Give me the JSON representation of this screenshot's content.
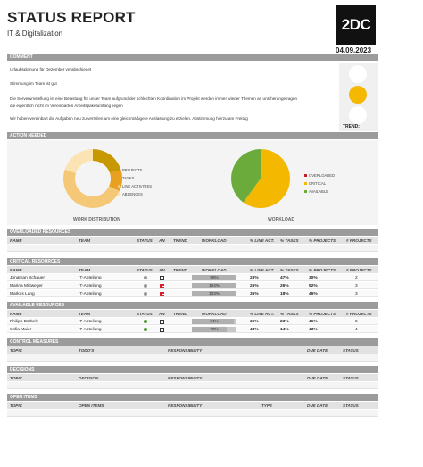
{
  "header": {
    "title": "STATUS REPORT",
    "subtitle": "IT & Digitalization",
    "logo": "2DC",
    "date": "04.09.2023"
  },
  "comment": {
    "heading": "COMMENT",
    "lines": [
      "Urlaubsplanung für Dezember verabschiedet",
      "Stimmung im Team ist gut",
      "Die Serverumstellung ist eine Belastung für unser Team aufgrund der schlechten Koordination im Projekt werden immer wieder Themen an uns herangetragen",
      "die eigentlich nicht im Vereinbarten Arbeitspaketumfang liegen",
      "Wir haben vereinbart die Aufgaben neu zu verteilen um eine gleichmäßigere Auslastung zu erzielen. Abstimmung hierzu am Freitag"
    ],
    "trend_label": "TREND:",
    "traffic_light": {
      "active": "yellow",
      "yellow_color": "#f5b800"
    }
  },
  "action_needed": {
    "heading": "ACTION NEEDED"
  },
  "chart_data": [
    {
      "type": "pie",
      "title": "WORK DISTRIBUTION",
      "labels": [
        "PROJECTS",
        "TASKS",
        "LINE ACTIVITIES",
        "ABSENCES"
      ],
      "values": [
        20,
        12,
        48,
        20
      ],
      "colors": [
        "#c89800",
        "#e8a020",
        "#f5c877",
        "#fbe3b3"
      ],
      "legend": "right"
    },
    {
      "type": "pie",
      "title": "WORKLOAD",
      "labels": [
        "OVERLOADED",
        "CRITICAL",
        "AVAILABLE"
      ],
      "values": [
        0,
        60,
        40
      ],
      "colors": [
        "#c0202c",
        "#f5b800",
        "#6aab3c"
      ],
      "legend": "right"
    }
  ],
  "overloaded": {
    "heading": "OVERLOADED RESOURCES",
    "columns": [
      "NAME",
      "TEAM",
      "STATUS",
      "AN",
      "TREND",
      "WORKLOAD",
      "% LINE ACT.",
      "% TASKS",
      "% PROJECTS",
      "# PROJECTS"
    ]
  },
  "critical": {
    "heading": "CRITICAL RESOURCES",
    "columns": [
      "NAME",
      "TEAM",
      "STATUS",
      "AN",
      "TREND",
      "WORKLOAD",
      "% LINE ACT.",
      "% TASKS",
      "% PROJECTS",
      "# PROJECTS"
    ],
    "rows": [
      {
        "name": "Jonathan Schauer",
        "team": "IT-Abteilung",
        "status": "#9a9a9a",
        "an": false,
        "workload": "98%",
        "load": 0.98,
        "line": "23%",
        "tasks": "47%",
        "projects": "30%",
        "nproj": "2"
      },
      {
        "name": "Marina Mittweger",
        "team": "IT-Abteilung",
        "status": "#9a9a9a",
        "an": true,
        "workload": "104%",
        "load": 1.0,
        "line": "26%",
        "tasks": "26%",
        "projects": "52%",
        "nproj": "3"
      },
      {
        "name": "Markus Lang",
        "team": "IT-Abteilung",
        "status": "#9a9a9a",
        "an": true,
        "workload": "103%",
        "load": 1.0,
        "line": "35%",
        "tasks": "18%",
        "projects": "46%",
        "nproj": "3"
      }
    ]
  },
  "available": {
    "heading": "AVAILABLE RESOURCES",
    "columns": [
      "NAME",
      "TEAM",
      "STATUS",
      "AN",
      "TREND",
      "WORKLOAD",
      "% LINE ACT.",
      "% TASKS",
      "% PROJECTS",
      "# PROJECTS"
    ],
    "rows": [
      {
        "name": "Philipp Borbely",
        "team": "IT-Abteilung",
        "status": "#4a9a2a",
        "an": false,
        "workload": "94%",
        "load": 0.94,
        "line": "36%",
        "tasks": "23%",
        "projects": "41%",
        "nproj": "5"
      },
      {
        "name": "Sofia Maier",
        "team": "IT-Abteilung",
        "status": "#4a9a2a",
        "an": false,
        "workload": "78%",
        "load": 0.78,
        "line": "43%",
        "tasks": "14%",
        "projects": "43%",
        "nproj": "4"
      }
    ]
  },
  "control_measures": {
    "heading": "CONTROL MEASURES",
    "columns": [
      "TOPIC",
      "TODO'S",
      "RESPONSIBILITY",
      "DUE DATE",
      "STATUS"
    ]
  },
  "decisions": {
    "heading": "DECISIONS",
    "columns": [
      "TOPIC",
      "DECISION",
      "RESPONSIBILITY",
      "DUE DATE",
      "STATUS"
    ]
  },
  "open_items": {
    "heading": "OPEN ITEMS",
    "columns": [
      "TOPIC",
      "OPEN ITEMS",
      "RESPONSIBILITY",
      "TYPE",
      "DUE DATE",
      "STATUS"
    ]
  }
}
